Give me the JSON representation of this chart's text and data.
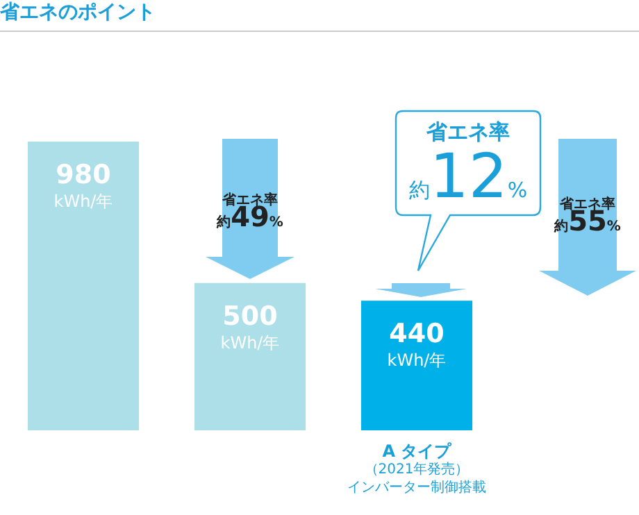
{
  "chart_data": {
    "type": "bar",
    "title": "省エネのポイント",
    "categories": [
      null,
      null,
      "A タイプ（2021年発売）インバーター制御搭載"
    ],
    "values": [
      980,
      500,
      440
    ],
    "colors": [
      "#acdfe8",
      "#acdfe8",
      "#00b0e8"
    ],
    "value_labels": [
      "980 kWh/年",
      "500 kWh/年",
      "440 kWh/年"
    ],
    "annotations": [
      "省エネ率",
      "約49%",
      "省エネ率",
      "約12%",
      "省エネ率",
      "約55%"
    ],
    "legend": false,
    "grid": false
  }
}
